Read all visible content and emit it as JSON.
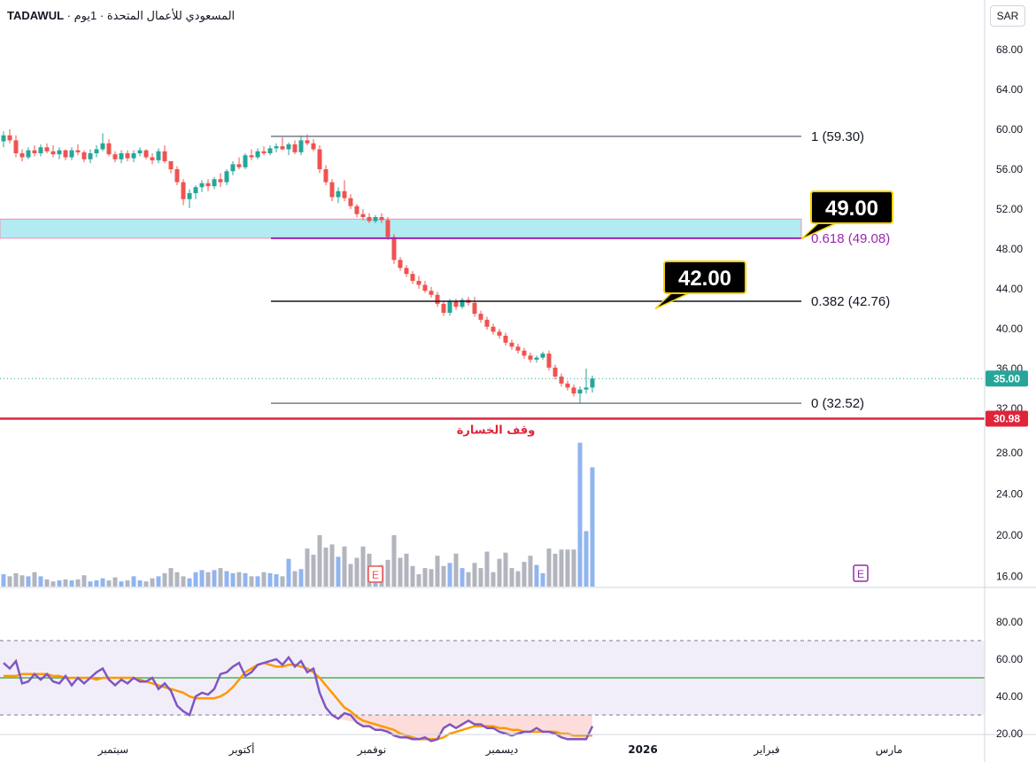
{
  "header": {
    "symbol": "TADAWUL",
    "separator": "·",
    "name": "المسعودي للأعمال المتحدة",
    "interval": "1يوم"
  },
  "currency_button": "SAR",
  "price_axis": {
    "ticks": [
      "68.00",
      "64.00",
      "60.00",
      "56.00",
      "52.00",
      "48.00",
      "44.00",
      "40.00",
      "36.00",
      "32.00",
      "28.00",
      "24.00",
      "20.00",
      "16.00"
    ],
    "current_label": "35.00",
    "stop_label": "30.98"
  },
  "rsi_axis": {
    "ticks": [
      "80.00",
      "60.00",
      "40.00",
      "20.00"
    ]
  },
  "time_axis": {
    "labels": [
      "سبتمبر",
      "أكتوبر",
      "نوفمبر",
      "ديسمبر",
      "2026",
      "فبراير",
      "مارس"
    ]
  },
  "fib_levels": [
    {
      "text": "1 (59.30)",
      "price": 59.3
    },
    {
      "text": "0.618 (49.08)",
      "price": 49.08
    },
    {
      "text": "0.382 (42.76)",
      "price": 42.76
    },
    {
      "text": "0 (32.52)",
      "price": 32.52
    }
  ],
  "callouts": [
    {
      "text": "49.00",
      "price": 49.0
    },
    {
      "text": "42.00",
      "price": 42.0
    }
  ],
  "stop_loss_text": "وقف الخسارة",
  "earnings_marker": "E",
  "colors": {
    "up": "#26a69a",
    "down": "#ef5350",
    "vol_up": "#90b4f0",
    "vol_down": "#b2b5be",
    "fib_purple": "#9c27b0",
    "stop_red": "#e0243a",
    "zone": "#b2ebf2",
    "rsi_line": "#7e57c2",
    "rsi_ma": "#ff9800",
    "rsi_mid": "#4caf50",
    "callout_bg": "#000000",
    "callout_border": "#f5d000"
  },
  "chart_data": {
    "type": "candlestick",
    "price_range": [
      30,
      70
    ],
    "zone": [
      49.08,
      51.0
    ],
    "current_price": 35.0,
    "stop_loss": 30.98,
    "candles": [
      [
        58.8,
        59.8,
        58.2,
        59.4
      ],
      [
        59.4,
        60.0,
        58.6,
        58.9
      ],
      [
        58.9,
        59.4,
        57.2,
        57.6
      ],
      [
        57.6,
        58.0,
        56.8,
        57.2
      ],
      [
        57.2,
        58.2,
        57.0,
        57.9
      ],
      [
        57.9,
        58.4,
        57.3,
        57.6
      ],
      [
        57.6,
        58.5,
        57.3,
        58.2
      ],
      [
        58.2,
        58.6,
        57.6,
        57.8
      ],
      [
        57.8,
        58.4,
        57.2,
        57.5
      ],
      [
        57.5,
        58.2,
        57.0,
        57.9
      ],
      [
        57.9,
        58.0,
        56.9,
        57.2
      ],
      [
        57.2,
        58.2,
        56.9,
        57.9
      ],
      [
        57.9,
        58.5,
        57.4,
        57.7
      ],
      [
        57.7,
        57.9,
        56.7,
        57.0
      ],
      [
        57.0,
        58.0,
        56.6,
        57.6
      ],
      [
        57.6,
        58.4,
        57.2,
        58.0
      ],
      [
        58.0,
        59.6,
        57.8,
        58.6
      ],
      [
        58.6,
        59.0,
        57.3,
        57.5
      ],
      [
        57.5,
        57.8,
        56.7,
        57.0
      ],
      [
        57.0,
        57.9,
        56.6,
        57.6
      ],
      [
        57.6,
        57.9,
        56.8,
        57.1
      ],
      [
        57.1,
        57.9,
        56.7,
        57.6
      ],
      [
        57.6,
        58.2,
        57.3,
        57.9
      ],
      [
        57.9,
        58.0,
        57.0,
        57.2
      ],
      [
        57.2,
        57.6,
        56.5,
        56.9
      ],
      [
        56.9,
        58.1,
        56.6,
        57.8
      ],
      [
        57.8,
        58.4,
        56.6,
        56.8
      ],
      [
        56.8,
        56.8,
        55.6,
        56.0
      ],
      [
        56.0,
        56.3,
        54.4,
        54.7
      ],
      [
        54.7,
        55.0,
        52.4,
        53.0
      ],
      [
        53.0,
        54.0,
        52.1,
        53.6
      ],
      [
        53.6,
        54.4,
        53.0,
        54.2
      ],
      [
        54.2,
        54.9,
        53.7,
        54.6
      ],
      [
        54.6,
        55.0,
        53.8,
        54.3
      ],
      [
        54.3,
        55.2,
        54.0,
        55.0
      ],
      [
        55.0,
        55.6,
        54.2,
        54.7
      ],
      [
        54.7,
        56.0,
        54.4,
        55.8
      ],
      [
        55.8,
        56.8,
        55.4,
        56.5
      ],
      [
        56.5,
        57.2,
        56.0,
        56.2
      ],
      [
        56.2,
        57.6,
        56.0,
        57.4
      ],
      [
        57.4,
        58.0,
        56.9,
        57.2
      ],
      [
        57.2,
        58.1,
        57.0,
        57.8
      ],
      [
        57.8,
        58.3,
        57.4,
        57.6
      ],
      [
        57.6,
        58.4,
        57.4,
        58.1
      ],
      [
        58.1,
        58.6,
        57.7,
        58.3
      ],
      [
        58.3,
        59.2,
        57.9,
        58.0
      ],
      [
        58.0,
        58.7,
        57.4,
        58.5
      ],
      [
        58.5,
        58.9,
        57.5,
        57.7
      ],
      [
        57.7,
        59.4,
        57.4,
        58.9
      ],
      [
        58.9,
        59.5,
        58.4,
        58.6
      ],
      [
        58.6,
        59.0,
        57.8,
        58.0
      ],
      [
        58.0,
        58.4,
        55.6,
        56.0
      ],
      [
        56.0,
        56.4,
        54.4,
        54.7
      ],
      [
        54.7,
        55.0,
        52.8,
        53.2
      ],
      [
        53.2,
        54.2,
        52.6,
        53.8
      ],
      [
        53.8,
        54.9,
        52.8,
        53.1
      ],
      [
        53.1,
        53.5,
        52.0,
        52.3
      ],
      [
        52.3,
        52.5,
        51.2,
        51.5
      ],
      [
        51.5,
        52.0,
        50.9,
        51.2
      ],
      [
        51.2,
        51.6,
        50.6,
        50.8
      ],
      [
        50.8,
        51.4,
        50.6,
        51.2
      ],
      [
        51.2,
        51.6,
        50.6,
        50.9
      ],
      [
        50.9,
        51.2,
        48.9,
        49.2
      ],
      [
        49.2,
        49.5,
        46.5,
        46.9
      ],
      [
        46.9,
        47.2,
        45.8,
        46.1
      ],
      [
        46.1,
        46.4,
        45.2,
        45.5
      ],
      [
        45.5,
        45.8,
        44.5,
        44.8
      ],
      [
        44.8,
        45.3,
        44.0,
        44.4
      ],
      [
        44.4,
        44.8,
        43.6,
        43.8
      ],
      [
        43.8,
        44.2,
        43.1,
        43.4
      ],
      [
        43.4,
        43.7,
        42.2,
        42.5
      ],
      [
        42.5,
        42.8,
        41.3,
        41.6
      ],
      [
        41.6,
        43.0,
        41.3,
        42.8
      ],
      [
        42.8,
        43.0,
        41.9,
        42.2
      ],
      [
        42.2,
        43.1,
        42.0,
        42.9
      ],
      [
        42.9,
        43.2,
        42.3,
        42.6
      ],
      [
        42.6,
        43.2,
        41.2,
        41.5
      ],
      [
        41.5,
        41.8,
        40.6,
        40.9
      ],
      [
        40.9,
        41.2,
        39.9,
        40.2
      ],
      [
        40.2,
        40.5,
        39.4,
        39.7
      ],
      [
        39.7,
        40.0,
        39.0,
        39.3
      ],
      [
        39.3,
        39.6,
        38.3,
        38.6
      ],
      [
        38.6,
        38.9,
        37.9,
        38.2
      ],
      [
        38.2,
        38.5,
        37.5,
        37.8
      ],
      [
        37.8,
        38.1,
        37.0,
        37.3
      ],
      [
        37.3,
        37.6,
        36.6,
        36.9
      ],
      [
        36.9,
        37.3,
        36.6,
        37.1
      ],
      [
        37.1,
        37.7,
        36.9,
        37.5
      ],
      [
        37.5,
        37.8,
        35.8,
        36.1
      ],
      [
        36.1,
        36.4,
        34.9,
        35.2
      ],
      [
        35.2,
        35.5,
        34.2,
        34.5
      ],
      [
        34.5,
        34.8,
        33.8,
        34.1
      ],
      [
        34.1,
        34.4,
        33.2,
        33.5
      ],
      [
        33.5,
        34.2,
        32.5,
        33.9
      ],
      [
        33.9,
        36.0,
        33.5,
        34.1
      ],
      [
        34.1,
        35.3,
        33.6,
        35.0
      ]
    ],
    "volumes": [
      16.2,
      16.0,
      16.3,
      16.1,
      16.0,
      16.4,
      16.0,
      15.7,
      15.5,
      15.6,
      15.7,
      15.6,
      15.7,
      16.1,
      15.5,
      15.6,
      15.8,
      15.6,
      15.9,
      15.5,
      15.6,
      16.0,
      15.6,
      15.5,
      15.8,
      16.0,
      16.3,
      16.8,
      16.4,
      16.0,
      15.8,
      16.4,
      16.6,
      16.4,
      16.6,
      16.8,
      16.5,
      16.3,
      16.4,
      16.3,
      16.0,
      16.0,
      16.4,
      16.3,
      16.2,
      16.0,
      17.7,
      16.5,
      16.7,
      18.7,
      18.1,
      20.0,
      18.8,
      19.1,
      17.9,
      18.9,
      17.2,
      17.8,
      18.9,
      18.2,
      16.3,
      17.1,
      17.6,
      20.0,
      17.8,
      18.2,
      17.0,
      16.2,
      16.8,
      16.7,
      18.0,
      17.0,
      17.3,
      18.2,
      16.8,
      16.4,
      17.3,
      16.8,
      18.4,
      16.4,
      17.7,
      18.3,
      16.8,
      16.5,
      17.4,
      18.0,
      17.1,
      16.3,
      18.7,
      18.2,
      18.6,
      18.6,
      18.6,
      29.0,
      20.4,
      26.6
    ],
    "rsi": [
      58,
      55,
      59,
      47,
      48,
      52,
      49,
      52,
      48,
      47,
      51,
      46,
      50,
      47,
      50,
      53,
      55,
      49,
      46,
      49,
      47,
      50,
      48,
      48,
      50,
      44,
      47,
      43,
      35,
      32,
      30,
      40,
      42,
      41,
      44,
      52,
      53,
      56,
      58,
      51,
      53,
      57,
      58,
      59,
      60,
      57,
      61,
      56,
      59,
      53,
      55,
      42,
      34,
      30,
      28,
      31,
      30,
      26,
      24,
      24,
      22,
      22,
      21,
      19,
      18,
      18,
      17,
      17,
      18,
      16,
      17,
      23,
      25,
      23,
      25,
      27,
      25,
      25,
      23,
      23,
      21,
      20,
      19,
      20,
      21,
      21,
      23,
      21,
      21,
      20,
      18,
      17,
      17,
      17,
      17,
      24
    ],
    "rsi_ma": [
      51,
      51,
      51,
      52,
      52,
      52,
      52,
      52,
      51,
      51,
      50,
      50,
      50,
      50,
      50,
      49,
      50,
      50,
      50,
      50,
      50,
      50,
      49,
      48,
      47,
      46,
      45,
      44,
      43,
      42,
      40,
      39,
      39,
      39,
      39,
      40,
      42,
      45,
      49,
      53,
      55,
      57,
      58,
      57,
      56,
      56,
      57,
      57,
      56,
      55,
      53,
      50,
      46,
      42,
      38,
      34,
      32,
      29,
      27,
      26,
      25,
      24,
      23,
      22,
      20,
      19,
      18,
      17,
      17,
      17,
      17,
      18,
      20,
      21,
      22,
      23,
      24,
      24,
      24,
      24,
      23,
      23,
      22,
      22,
      21,
      21,
      21,
      21,
      21,
      21,
      20,
      20,
      19,
      19,
      19,
      19
    ],
    "rsi_levels": {
      "upper": 70,
      "middle": 50,
      "lower": 30
    },
    "rsi_range": [
      12,
      88
    ]
  }
}
